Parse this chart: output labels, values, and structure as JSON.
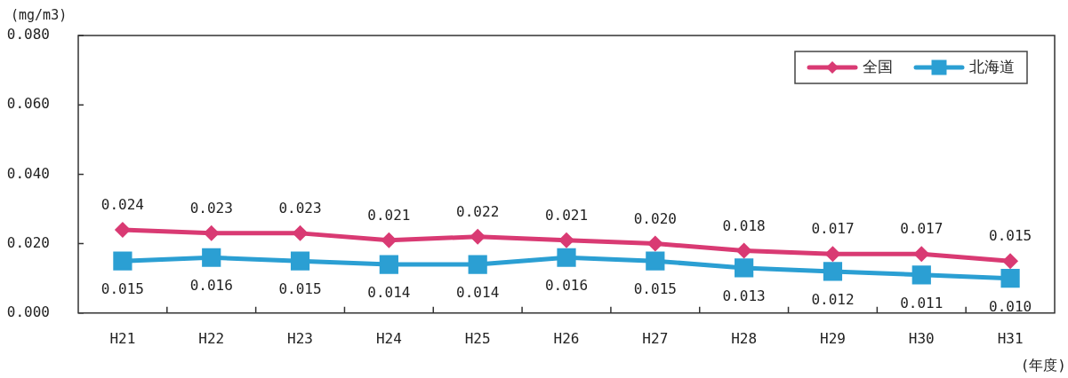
{
  "chart_data": {
    "type": "line",
    "xlabel": "(年度)",
    "ylabel": "(mg/m3)",
    "legend": "top right",
    "categories": [
      "H21",
      "H22",
      "H23",
      "H24",
      "H25",
      "H26",
      "H27",
      "H28",
      "H29",
      "H30",
      "H31"
    ],
    "series": [
      {
        "name": "全国",
        "color": "#d93a73",
        "marker": "diamond",
        "values": [
          0.024,
          0.023,
          0.023,
          0.021,
          0.022,
          0.021,
          0.02,
          0.018,
          0.017,
          0.017,
          0.015
        ],
        "value_labels": [
          "0.024",
          "0.023",
          "0.023",
          "0.021",
          "0.022",
          "0.021",
          "0.020",
          "0.018",
          "0.017",
          "0.017",
          "0.015"
        ]
      },
      {
        "name": "北海道",
        "color": "#2b9fd3",
        "marker": "square",
        "values": [
          0.015,
          0.016,
          0.015,
          0.014,
          0.014,
          0.016,
          0.015,
          0.013,
          0.012,
          0.011,
          0.01
        ],
        "value_labels": [
          "0.015",
          "0.016",
          "0.015",
          "0.014",
          "0.014",
          "0.016",
          "0.015",
          "0.013",
          "0.012",
          "0.011",
          "0.010"
        ]
      }
    ],
    "ylim": [
      0,
      0.08
    ],
    "yticks": [
      {
        "value": 0,
        "label": "0.000"
      },
      {
        "value": 0.02,
        "label": "0.020"
      },
      {
        "value": 0.04,
        "label": "0.040"
      },
      {
        "value": 0.06,
        "label": "0.060"
      },
      {
        "value": 0.08,
        "label": "0.080"
      }
    ]
  }
}
